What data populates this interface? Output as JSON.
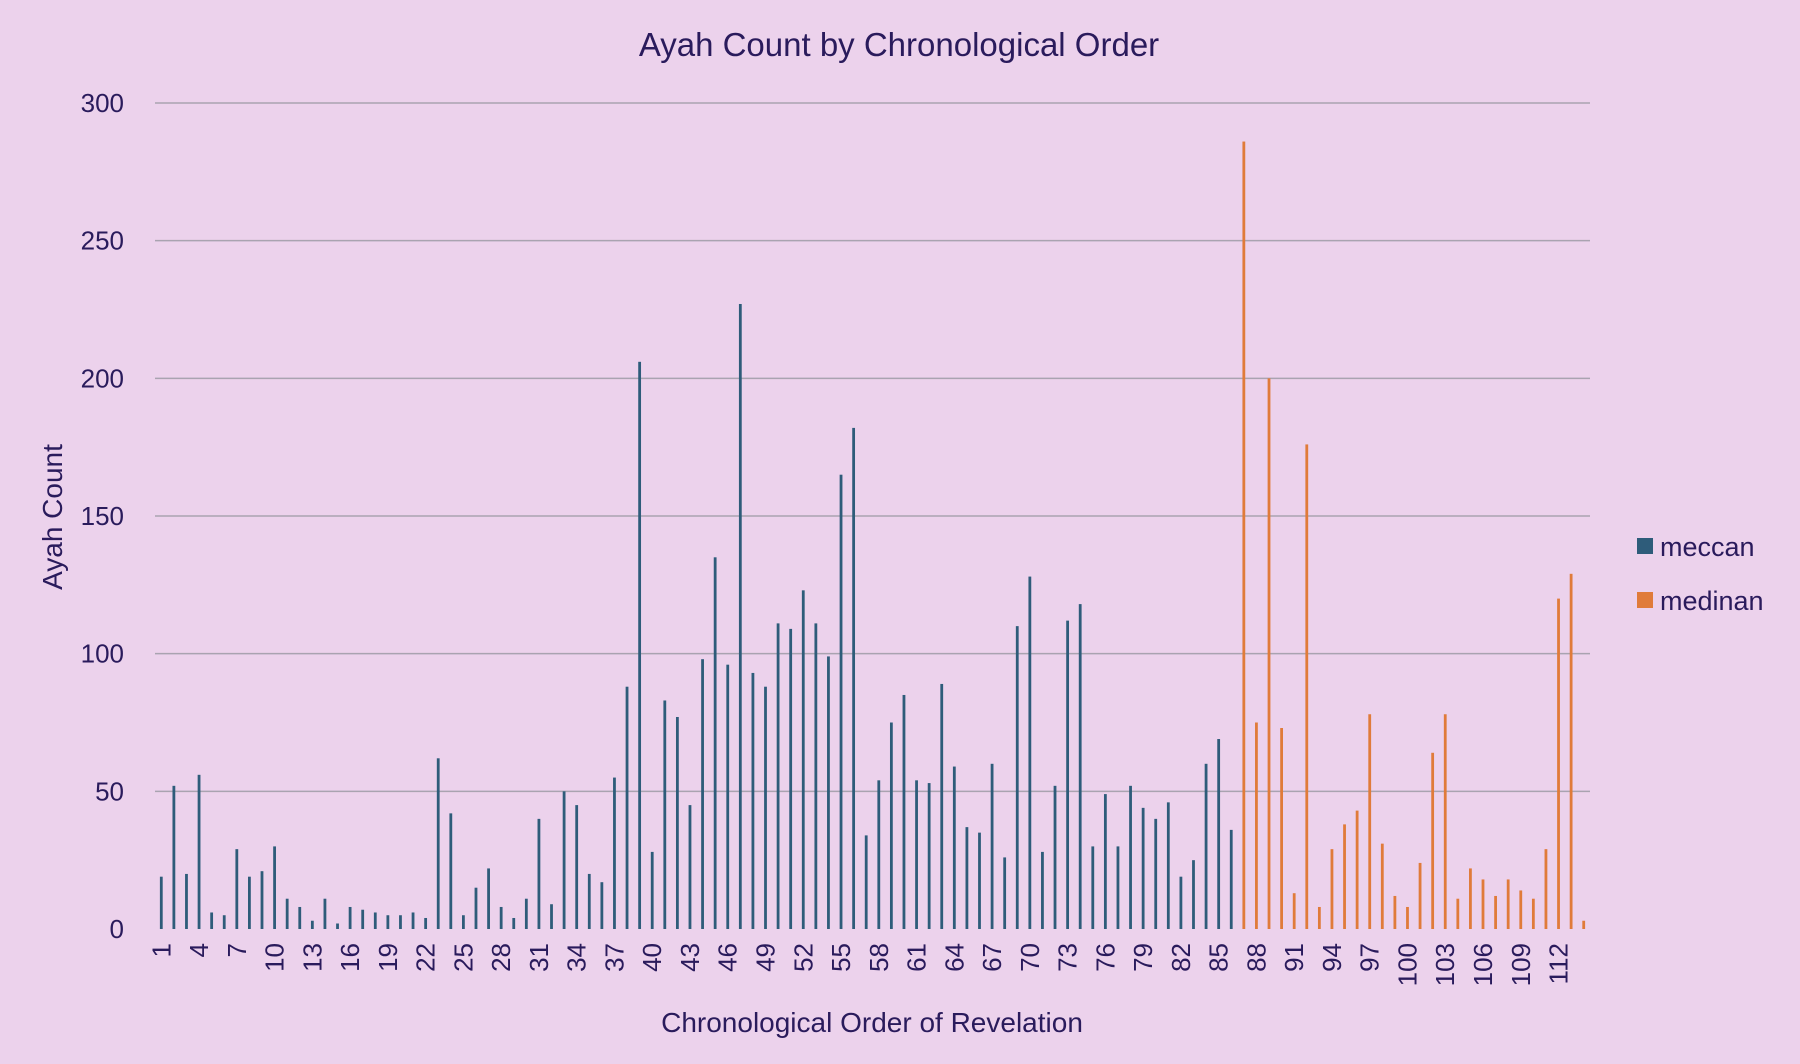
{
  "chart_data": {
    "type": "bar",
    "title": "Ayah Count by Chronological Order",
    "xlabel": "Chronological Order of Revelation",
    "ylabel": "Ayah Count",
    "ylim": [
      0,
      300
    ],
    "yticks": [
      0,
      50,
      100,
      150,
      200,
      250,
      300
    ],
    "x": [
      1,
      2,
      3,
      4,
      5,
      6,
      7,
      8,
      9,
      10,
      11,
      12,
      13,
      14,
      15,
      16,
      17,
      18,
      19,
      20,
      21,
      22,
      23,
      24,
      25,
      26,
      27,
      28,
      29,
      30,
      31,
      32,
      33,
      34,
      35,
      36,
      37,
      38,
      39,
      40,
      41,
      42,
      43,
      44,
      45,
      46,
      47,
      48,
      49,
      50,
      51,
      52,
      53,
      54,
      55,
      56,
      57,
      58,
      59,
      60,
      61,
      62,
      63,
      64,
      65,
      66,
      67,
      68,
      69,
      70,
      71,
      72,
      73,
      74,
      75,
      76,
      77,
      78,
      79,
      80,
      81,
      82,
      83,
      84,
      85,
      86,
      87,
      88,
      89,
      90,
      91,
      92,
      93,
      94,
      95,
      96,
      97,
      98,
      99,
      100,
      101,
      102,
      103,
      104,
      105,
      106,
      107,
      108,
      109,
      110,
      111,
      112,
      113,
      114
    ],
    "x_tick_labels": [
      1,
      4,
      7,
      10,
      13,
      16,
      19,
      22,
      25,
      28,
      31,
      34,
      37,
      40,
      43,
      46,
      49,
      52,
      55,
      58,
      61,
      64,
      67,
      70,
      73,
      76,
      79,
      82,
      85,
      88,
      91,
      94,
      97,
      100,
      103,
      106,
      109,
      112
    ],
    "grid": true,
    "legend_position": "right",
    "series": [
      {
        "name": "meccan",
        "color": "#2e5c7a",
        "values": [
          19,
          52,
          20,
          56,
          6,
          5,
          29,
          19,
          21,
          30,
          11,
          8,
          3,
          11,
          2,
          8,
          7,
          6,
          5,
          5,
          6,
          4,
          62,
          42,
          5,
          15,
          22,
          8,
          4,
          11,
          40,
          9,
          50,
          45,
          20,
          17,
          55,
          88,
          206,
          28,
          83,
          77,
          45,
          98,
          135,
          96,
          227,
          93,
          88,
          111,
          109,
          123,
          111,
          99,
          165,
          182,
          34,
          54,
          75,
          85,
          54,
          53,
          89,
          59,
          37,
          35,
          60,
          26,
          110,
          128,
          28,
          52,
          112,
          118,
          30,
          49,
          30,
          52,
          44,
          40,
          46,
          19,
          25,
          60,
          69,
          36,
          null,
          null,
          null,
          null,
          null,
          null,
          null,
          null,
          null,
          null,
          null,
          null,
          null,
          null,
          null,
          null,
          null,
          null,
          null,
          null,
          null,
          null,
          null,
          null,
          null,
          null,
          null,
          null
        ]
      },
      {
        "name": "medinan",
        "color": "#e07b3a",
        "values": [
          null,
          null,
          null,
          null,
          null,
          null,
          null,
          null,
          null,
          null,
          null,
          null,
          null,
          null,
          null,
          null,
          null,
          null,
          null,
          null,
          null,
          null,
          null,
          null,
          null,
          null,
          null,
          null,
          null,
          null,
          null,
          null,
          null,
          null,
          null,
          null,
          null,
          null,
          null,
          null,
          null,
          null,
          null,
          null,
          null,
          null,
          null,
          null,
          null,
          null,
          null,
          null,
          null,
          null,
          null,
          null,
          null,
          null,
          null,
          null,
          null,
          null,
          null,
          null,
          null,
          null,
          null,
          null,
          null,
          null,
          null,
          null,
          null,
          null,
          null,
          null,
          null,
          null,
          null,
          null,
          null,
          null,
          null,
          null,
          null,
          null,
          286,
          75,
          200,
          73,
          13,
          176,
          8,
          29,
          38,
          43,
          78,
          31,
          12,
          8,
          24,
          64,
          78,
          11,
          22,
          18,
          12,
          18,
          14,
          11,
          29,
          120,
          129,
          3
        ]
      }
    ]
  }
}
